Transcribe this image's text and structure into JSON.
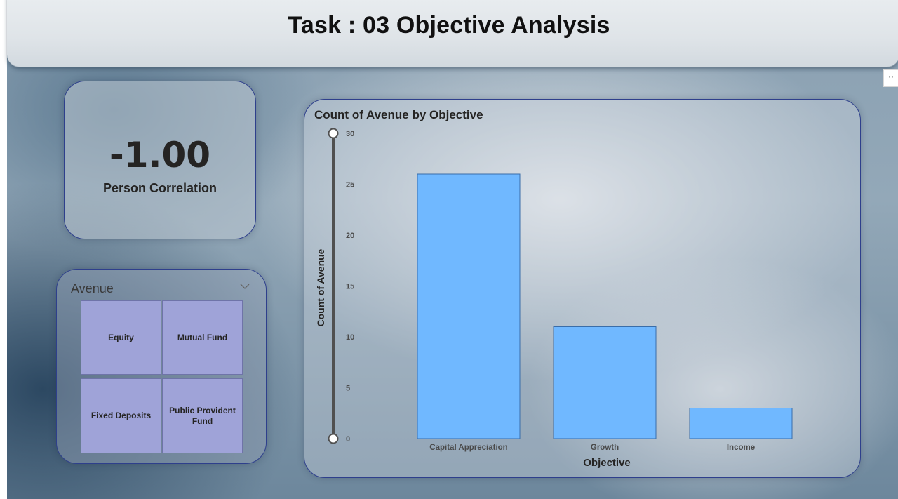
{
  "header": {
    "title": "Task : 03 Objective Analysis",
    "more_label": "··"
  },
  "kpi": {
    "value": "-1.00",
    "label": "Person Correlation"
  },
  "slicer": {
    "title": "Avenue",
    "tiles": [
      "Equity",
      "Mutual Fund",
      "Fixed Deposits",
      "Public Provident Fund"
    ]
  },
  "colors": {
    "bar": "#70b8ff",
    "tile": "#9fa3d8",
    "card_border": "#2e3f8c"
  },
  "icons": {
    "slicer_toggle": "chevron-down-icon",
    "more": "more-options-icon"
  },
  "chart_data": {
    "type": "bar",
    "title": "Count of Avenue by Objective",
    "xlabel": "Objective",
    "ylabel": "Count of Avenue",
    "categories": [
      "Capital Appreciation",
      "Growth",
      "Income"
    ],
    "values": [
      26,
      11,
      3
    ],
    "ylim": [
      0,
      30
    ],
    "yticks": [
      0,
      5,
      10,
      15,
      20,
      25,
      30
    ],
    "grid": false,
    "legend": "none",
    "y_range_slider": true
  }
}
